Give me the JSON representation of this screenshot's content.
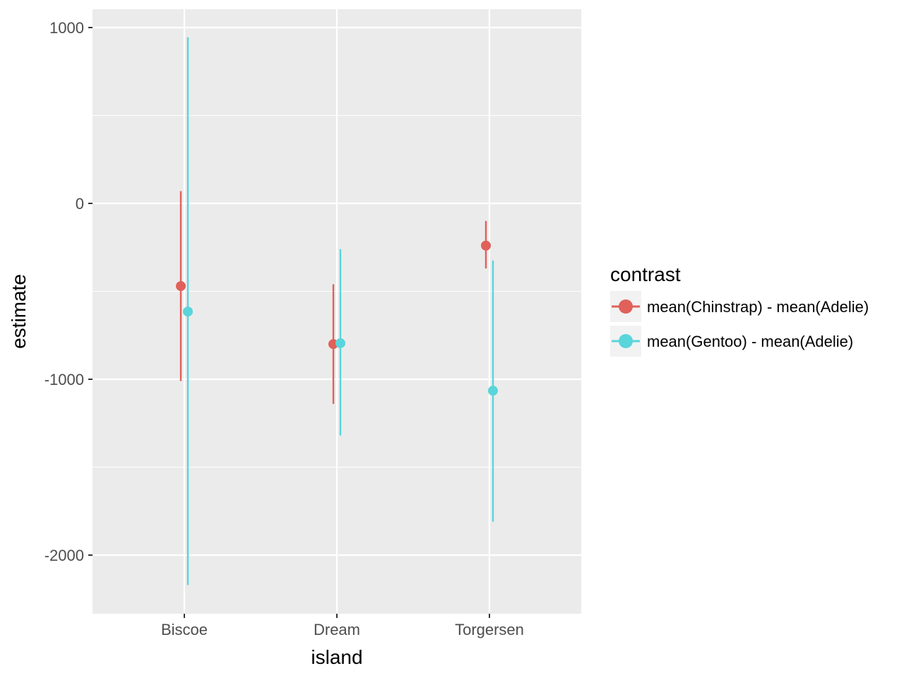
{
  "chart_data": {
    "type": "scatter",
    "subtype": "pointrange",
    "xlabel": "island",
    "ylabel": "estimate",
    "categories": [
      "Biscoe",
      "Dream",
      "Torgersen"
    ],
    "ylim": [
      -2330,
      1100
    ],
    "yticks": [
      1000,
      0,
      -1000,
      -2000
    ],
    "ytick_labels": [
      "1000",
      "0",
      "-1000",
      "-2000"
    ],
    "grid": true,
    "legend": {
      "title": "contrast",
      "position": "right"
    },
    "series": [
      {
        "name": "mean(Chinstrap) - mean(Adelie)",
        "color": "#E0605A",
        "estimate": [
          -470,
          -800,
          -240
        ],
        "lower": [
          -1010,
          -1140,
          -370
        ],
        "upper": [
          70,
          -460,
          -100
        ]
      },
      {
        "name": "mean(Gentoo) - mean(Adelie)",
        "color": "#59D5DB",
        "estimate": [
          -615,
          -795,
          -1065
        ],
        "lower": [
          -2170,
          -1320,
          -1810
        ],
        "upper": [
          945,
          -260,
          -325
        ]
      }
    ]
  }
}
